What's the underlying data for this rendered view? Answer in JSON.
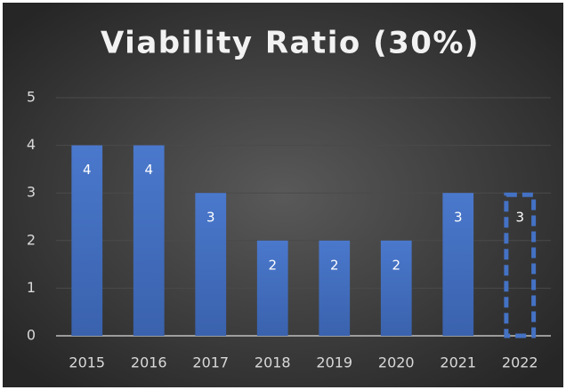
{
  "chart_data": {
    "type": "bar",
    "title": "Viability Ratio (30%)",
    "categories": [
      "2015",
      "2016",
      "2017",
      "2018",
      "2019",
      "2020",
      "2021",
      "2022"
    ],
    "values": [
      4,
      4,
      3,
      2,
      2,
      2,
      3,
      3
    ],
    "color": "#4472c4",
    "dashed_bars": [
      "2022"
    ],
    "ylim": [
      0,
      5
    ],
    "yticks": [
      0,
      1,
      2,
      3,
      4,
      5
    ],
    "grid": true
  }
}
